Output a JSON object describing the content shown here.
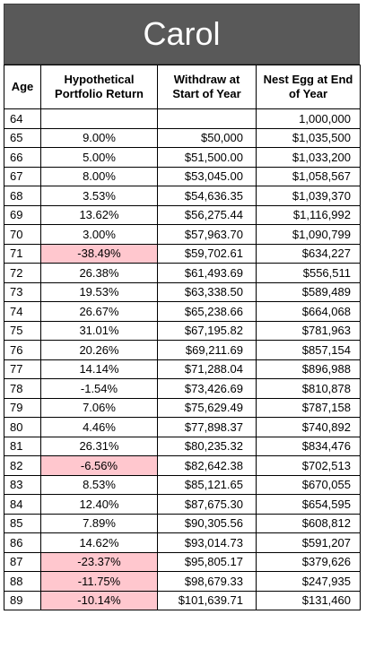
{
  "title": "Carol",
  "headers": {
    "age": "Age",
    "return": "Hypothetical Portfolio Return",
    "withdraw": "Withdraw at Start of Year",
    "nest_egg": "Nest Egg at End of Year"
  },
  "highlight_color": "#ffc7ce",
  "rows": [
    {
      "age": "64",
      "ret": "",
      "wd": "",
      "ne": "1,000,000",
      "hl": false
    },
    {
      "age": "65",
      "ret": "9.00%",
      "wd": "$50,000",
      "ne": "$1,035,500",
      "hl": false
    },
    {
      "age": "66",
      "ret": "5.00%",
      "wd": "$51,500.00",
      "ne": "$1,033,200",
      "hl": false
    },
    {
      "age": "67",
      "ret": "8.00%",
      "wd": "$53,045.00",
      "ne": "$1,058,567",
      "hl": false
    },
    {
      "age": "68",
      "ret": "3.53%",
      "wd": "$54,636.35",
      "ne": "$1,039,370",
      "hl": false
    },
    {
      "age": "69",
      "ret": "13.62%",
      "wd": "$56,275.44",
      "ne": "$1,116,992",
      "hl": false
    },
    {
      "age": "70",
      "ret": "3.00%",
      "wd": "$57,963.70",
      "ne": "$1,090,799",
      "hl": false
    },
    {
      "age": "71",
      "ret": "-38.49%",
      "wd": "$59,702.61",
      "ne": "$634,227",
      "hl": true
    },
    {
      "age": "72",
      "ret": "26.38%",
      "wd": "$61,493.69",
      "ne": "$556,511",
      "hl": false
    },
    {
      "age": "73",
      "ret": "19.53%",
      "wd": "$63,338.50",
      "ne": "$589,489",
      "hl": false
    },
    {
      "age": "74",
      "ret": "26.67%",
      "wd": "$65,238.66",
      "ne": "$664,068",
      "hl": false
    },
    {
      "age": "75",
      "ret": "31.01%",
      "wd": "$67,195.82",
      "ne": "$781,963",
      "hl": false
    },
    {
      "age": "76",
      "ret": "20.26%",
      "wd": "$69,211.69",
      "ne": "$857,154",
      "hl": false
    },
    {
      "age": "77",
      "ret": "14.14%",
      "wd": "$71,288.04",
      "ne": "$896,988",
      "hl": false
    },
    {
      "age": "78",
      "ret": "-1.54%",
      "wd": "$73,426.69",
      "ne": "$810,878",
      "hl": false
    },
    {
      "age": "79",
      "ret": "7.06%",
      "wd": "$75,629.49",
      "ne": "$787,158",
      "hl": false
    },
    {
      "age": "80",
      "ret": "4.46%",
      "wd": "$77,898.37",
      "ne": "$740,892",
      "hl": false
    },
    {
      "age": "81",
      "ret": "26.31%",
      "wd": "$80,235.32",
      "ne": "$834,476",
      "hl": false
    },
    {
      "age": "82",
      "ret": "-6.56%",
      "wd": "$82,642.38",
      "ne": "$702,513",
      "hl": true
    },
    {
      "age": "83",
      "ret": "8.53%",
      "wd": "$85,121.65",
      "ne": "$670,055",
      "hl": false
    },
    {
      "age": "84",
      "ret": "12.40%",
      "wd": "$87,675.30",
      "ne": "$654,595",
      "hl": false
    },
    {
      "age": "85",
      "ret": "7.89%",
      "wd": "$90,305.56",
      "ne": "$608,812",
      "hl": false
    },
    {
      "age": "86",
      "ret": "14.62%",
      "wd": "$93,014.73",
      "ne": "$591,207",
      "hl": false
    },
    {
      "age": "87",
      "ret": "-23.37%",
      "wd": "$95,805.17",
      "ne": "$379,626",
      "hl": true
    },
    {
      "age": "88",
      "ret": "-11.75%",
      "wd": "$98,679.33",
      "ne": "$247,935",
      "hl": true
    },
    {
      "age": "89",
      "ret": "-10.14%",
      "wd": "$101,639.71",
      "ne": "$131,460",
      "hl": true
    }
  ]
}
